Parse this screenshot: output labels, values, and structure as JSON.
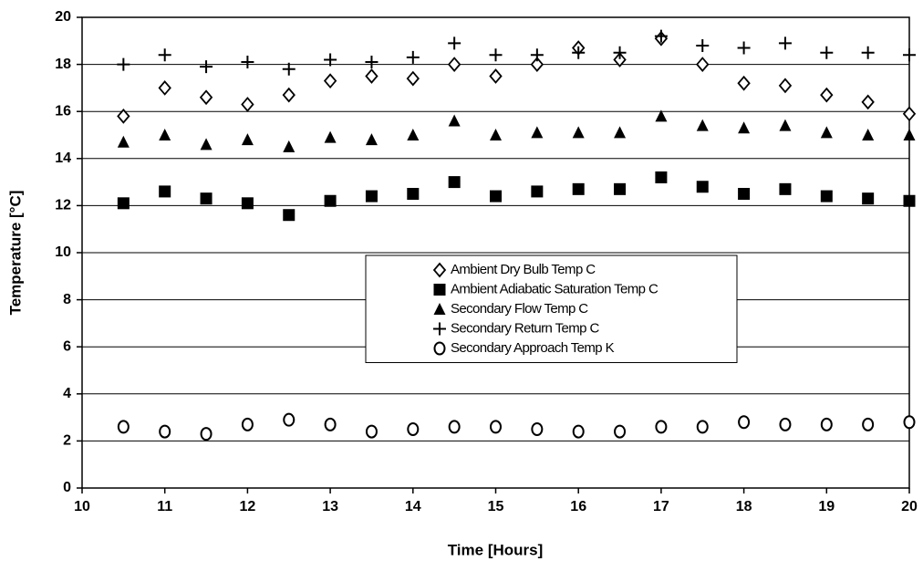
{
  "chart_data": {
    "type": "scatter",
    "x_label": "Time [Hours]",
    "y_label": "Temperature [°C]",
    "x": [
      10.5,
      11,
      11.5,
      12,
      12.5,
      13,
      13.5,
      14,
      14.5,
      15,
      15.5,
      16,
      16.5,
      17,
      17.5,
      18,
      18.5,
      19,
      19.5,
      20
    ],
    "series": [
      {
        "name": "Ambient Dry Bulb Temp C",
        "color": "#000000",
        "marker": "diamond",
        "values": [
          15.8,
          17.0,
          16.6,
          16.3,
          16.7,
          17.3,
          17.5,
          17.4,
          18.0,
          17.5,
          18.0,
          18.7,
          18.2,
          19.1,
          18.0,
          17.2,
          17.1,
          16.7,
          16.4,
          15.9
        ]
      },
      {
        "name": "Ambient Adiabatic Saturation Temp C",
        "color": "#000000",
        "marker": "square",
        "values": [
          12.1,
          12.6,
          12.3,
          12.1,
          11.6,
          12.2,
          12.4,
          12.5,
          13.0,
          12.4,
          12.6,
          12.7,
          12.7,
          13.2,
          12.8,
          12.5,
          12.7,
          12.4,
          12.3,
          12.2
        ]
      },
      {
        "name": "Secondary Flow Temp C",
        "color": "#000000",
        "marker": "triangle",
        "values": [
          14.7,
          15.0,
          14.6,
          14.8,
          14.5,
          14.9,
          14.8,
          15.0,
          15.6,
          15.0,
          15.1,
          15.1,
          15.1,
          15.8,
          15.4,
          15.3,
          15.4,
          15.1,
          15.0,
          15.0
        ]
      },
      {
        "name": "Secondary Return Temp C",
        "color": "#000000",
        "marker": "plus",
        "values": [
          18.0,
          18.4,
          17.9,
          18.1,
          17.8,
          18.2,
          18.1,
          18.3,
          18.9,
          18.4,
          18.4,
          18.5,
          18.5,
          19.2,
          18.8,
          18.7,
          18.9,
          18.5,
          18.5,
          18.4
        ]
      },
      {
        "name": "Secondary Approach Temp K",
        "color": "#000000",
        "marker": "circle",
        "values": [
          2.6,
          2.4,
          2.3,
          2.7,
          2.9,
          2.7,
          2.4,
          2.5,
          2.6,
          2.6,
          2.5,
          2.4,
          2.4,
          2.6,
          2.6,
          2.8,
          2.7,
          2.7,
          2.7,
          2.8
        ]
      }
    ],
    "xlim": [
      10,
      20
    ],
    "xticks": [
      10,
      11,
      12,
      13,
      14,
      15,
      16,
      17,
      18,
      19,
      20
    ],
    "ylim": [
      0,
      20
    ],
    "yticks": [
      0,
      2,
      4,
      6,
      8,
      10,
      12,
      14,
      16,
      18,
      20
    ],
    "grid": true,
    "legend": "center"
  }
}
